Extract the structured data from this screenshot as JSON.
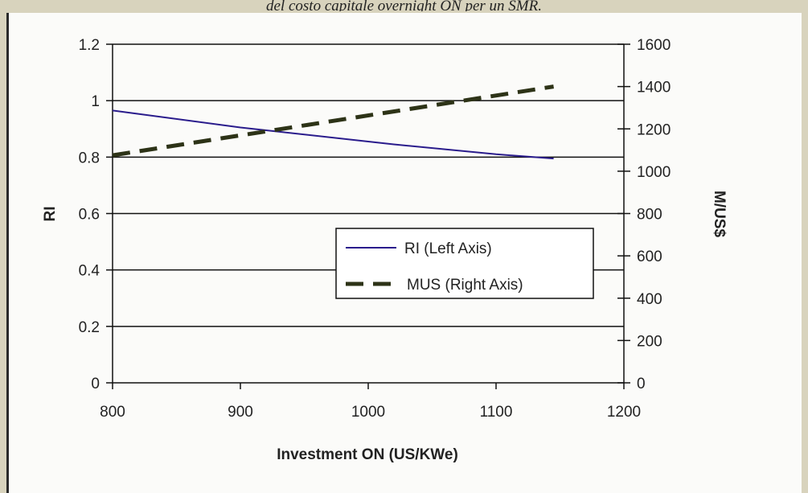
{
  "caption": "del costo capitale overnight ON per un  SMR.",
  "chart_data": {
    "type": "line",
    "xlabel": "Investment ON (US/KWe)",
    "ylabel_left": "RI",
    "ylabel_right": "M/US$",
    "xlim": [
      800,
      1200
    ],
    "ylim_left": [
      0,
      1.2
    ],
    "ylim_right": [
      0,
      1600
    ],
    "x_ticks": [
      "800",
      "900",
      "1000",
      "1100",
      "1200"
    ],
    "y_left_ticks": [
      "0",
      "0.2",
      "0.4",
      "0.6",
      "0.8",
      "1",
      "1.2"
    ],
    "y_right_ticks": [
      "0",
      "200",
      "400",
      "600",
      "800",
      "1000",
      "1200",
      "1400",
      "1600"
    ],
    "grid": "horizontal",
    "legend_placement": "center-right",
    "series": [
      {
        "name": "RI (Left Axis)",
        "axis": "left",
        "color": "#2a1c8c",
        "style": "solid",
        "x": [
          800,
          900,
          1000,
          1020,
          1100,
          1145
        ],
        "y": [
          0.965,
          0.905,
          0.855,
          0.845,
          0.81,
          0.795
        ]
      },
      {
        "name": "MUS (Right Axis)",
        "axis": "right",
        "color": "#2d3317",
        "style": "dashed",
        "x": [
          800,
          1145
        ],
        "y": [
          1075,
          1400
        ]
      }
    ]
  }
}
